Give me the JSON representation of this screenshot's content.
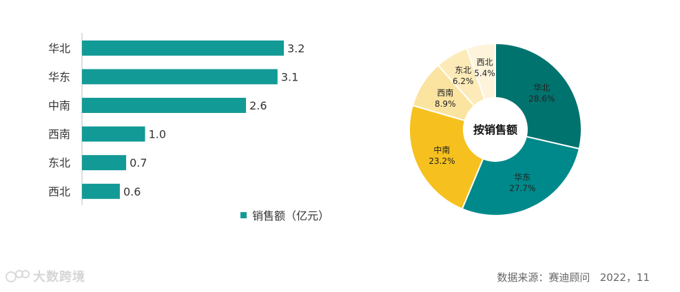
{
  "chart_data": [
    {
      "type": "bar",
      "orientation": "horizontal",
      "categories": [
        "华北",
        "华东",
        "中南",
        "西南",
        "东北",
        "西北"
      ],
      "series": [
        {
          "name": "销售额（亿元）",
          "values": [
            3.2,
            3.1,
            2.6,
            1.0,
            0.7,
            0.6
          ]
        }
      ],
      "value_labels": [
        "3.2",
        "3.1",
        "2.6",
        "1.0",
        "0.7",
        "0.6"
      ],
      "xlim": [
        0,
        3.2
      ],
      "legend": "bottom",
      "grid": false,
      "color": "#129A96"
    },
    {
      "type": "pie",
      "donut": true,
      "center_label": "按销售额",
      "slices": [
        {
          "label": "华北",
          "value": 28.6,
          "text": "28.6%",
          "color": "#00736E"
        },
        {
          "label": "华东",
          "value": 27.7,
          "text": "27.7%",
          "color": "#00898A"
        },
        {
          "label": "中南",
          "value": 23.2,
          "text": "23.2%",
          "color": "#F6C11E"
        },
        {
          "label": "西南",
          "value": 8.9,
          "text": "8.9%",
          "color": "#FBE4A0"
        },
        {
          "label": "东北",
          "value": 6.2,
          "text": "6.2%",
          "color": "#FCEBB9"
        },
        {
          "label": "西北",
          "value": 5.4,
          "text": "5.4%",
          "color": "#FEF4DC"
        }
      ]
    }
  ],
  "legend": {
    "label": "销售额（亿元）",
    "color": "#129A96"
  },
  "footer": {
    "source": "数据来源：赛迪顾问   2022，11",
    "watermark": "大数跨境"
  }
}
